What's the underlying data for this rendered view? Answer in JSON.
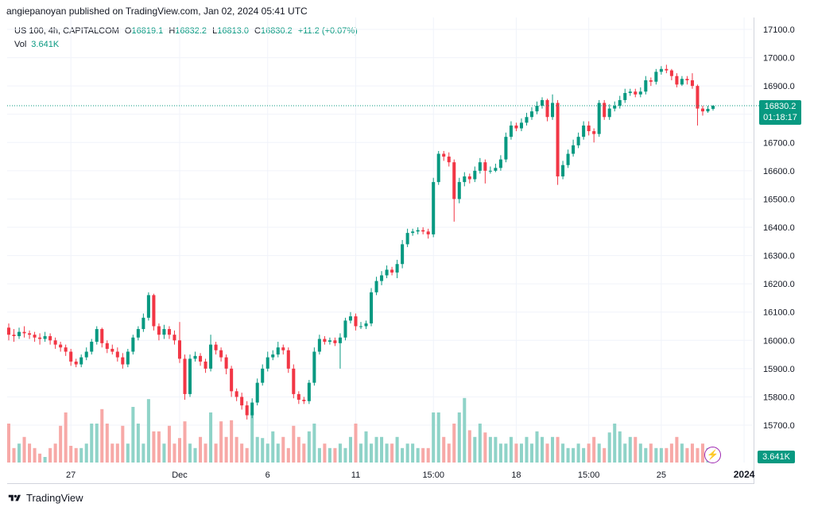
{
  "header": {
    "attribution": "angiepanoyan published on TradingView.com, Jan 02, 2024 05:41 UTC"
  },
  "legend": {
    "symbol": "US 100, 4h, CAPITALCOM",
    "open_label": "O",
    "open": "16819.1",
    "high_label": "H",
    "high": "16832.2",
    "low_label": "L",
    "low": "16813.0",
    "close_label": "C",
    "close": "16830.2",
    "change": "+11.2 (+0.07%)",
    "vol_label": "Vol",
    "vol_value": "3.641K"
  },
  "price_badge": {
    "price": "16830.2",
    "countdown": "01:18:17"
  },
  "vol_badge": "3.641K",
  "footer": {
    "brand": "TradingView"
  },
  "colors": {
    "up": "#089981",
    "down": "#f23645",
    "vol_up": "#8fd3c8",
    "vol_down": "#f7a9a7",
    "grid": "#f0f3fa",
    "text": "#131722"
  },
  "chart_data": {
    "type": "candlestick",
    "title": "",
    "y_axis_ticks": [
      "17100.0",
      "17000.0",
      "16900.0",
      "16800.0",
      "16700.0",
      "16600.0",
      "16500.0",
      "16400.0",
      "16300.0",
      "16200.0",
      "16100.0",
      "16000.0",
      "15900.0",
      "15800.0",
      "15700.0"
    ],
    "x_axis_ticks": [
      "27",
      "Dec",
      "6",
      "11",
      "15:00",
      "18",
      "15:00",
      "25",
      "2024"
    ],
    "ylim": [
      15600,
      17140
    ],
    "current_price": 16830.2,
    "candles": [
      [
        16045,
        16020,
        16060,
        16000
      ],
      [
        16020,
        16015,
        16040,
        15995
      ],
      [
        16015,
        16030,
        16045,
        16005
      ],
      [
        16030,
        16025,
        16050,
        16010
      ],
      [
        16025,
        16020,
        16035,
        16005
      ],
      [
        16020,
        16010,
        16030,
        15995
      ],
      [
        16010,
        16005,
        16025,
        15985
      ],
      [
        16005,
        16015,
        16030,
        15995
      ],
      [
        16015,
        16000,
        16025,
        15985
      ],
      [
        16000,
        15985,
        16010,
        15970
      ],
      [
        15985,
        15975,
        15995,
        15960
      ],
      [
        15975,
        15960,
        15985,
        15945
      ],
      [
        15960,
        15925,
        15970,
        15910
      ],
      [
        15925,
        15915,
        15935,
        15905
      ],
      [
        15915,
        15940,
        15950,
        15905
      ],
      [
        15940,
        15960,
        15975,
        15930
      ],
      [
        15960,
        15995,
        16005,
        15950
      ],
      [
        15995,
        16040,
        16050,
        15985
      ],
      [
        16040,
        15990,
        16045,
        15975
      ],
      [
        15990,
        15970,
        16000,
        15955
      ],
      [
        15970,
        15960,
        15985,
        15950
      ],
      [
        15960,
        15940,
        15975,
        15925
      ],
      [
        15940,
        15915,
        15955,
        15900
      ],
      [
        15915,
        15960,
        15970,
        15905
      ],
      [
        15960,
        16010,
        16020,
        15950
      ],
      [
        16010,
        16040,
        16050,
        16000
      ],
      [
        16040,
        16080,
        16095,
        16030
      ],
      [
        16080,
        16160,
        16170,
        16070
      ],
      [
        16160,
        16050,
        16165,
        16035
      ],
      [
        16050,
        16020,
        16060,
        16000
      ],
      [
        16020,
        16040,
        16055,
        16005
      ],
      [
        16040,
        16020,
        16050,
        16005
      ],
      [
        16020,
        16000,
        16035,
        15985
      ],
      [
        16000,
        15935,
        16065,
        15920
      ],
      [
        15935,
        15810,
        15950,
        15790
      ],
      [
        15810,
        15935,
        15950,
        15800
      ],
      [
        15935,
        15945,
        15960,
        15925
      ],
      [
        15945,
        15925,
        15955,
        15910
      ],
      [
        15925,
        15900,
        15935,
        15885
      ],
      [
        15900,
        15985,
        16020,
        15890
      ],
      [
        15985,
        15965,
        15995,
        15950
      ],
      [
        15965,
        15940,
        15975,
        15925
      ],
      [
        15940,
        15900,
        15950,
        15880
      ],
      [
        15900,
        15820,
        15910,
        15800
      ],
      [
        15820,
        15800,
        15830,
        15785
      ],
      [
        15800,
        15770,
        15815,
        15755
      ],
      [
        15770,
        15735,
        15785,
        15720
      ],
      [
        15735,
        15780,
        15795,
        15725
      ],
      [
        15780,
        15850,
        15865,
        15770
      ],
      [
        15850,
        15900,
        15915,
        15840
      ],
      [
        15900,
        15940,
        15960,
        15890
      ],
      [
        15940,
        15950,
        15965,
        15930
      ],
      [
        15950,
        15975,
        15995,
        15940
      ],
      [
        15975,
        15965,
        15985,
        15950
      ],
      [
        15965,
        15900,
        15975,
        15885
      ],
      [
        15900,
        15810,
        15915,
        15795
      ],
      [
        15810,
        15790,
        15820,
        15775
      ],
      [
        15790,
        15785,
        15800,
        15775
      ],
      [
        15785,
        15850,
        15860,
        15775
      ],
      [
        15850,
        15960,
        15975,
        15840
      ],
      [
        15960,
        16005,
        16020,
        15950
      ],
      [
        16005,
        15995,
        16015,
        15985
      ],
      [
        15995,
        16000,
        16010,
        15985
      ],
      [
        16000,
        15990,
        16010,
        15980
      ],
      [
        15990,
        16010,
        16025,
        15900
      ],
      [
        16010,
        16070,
        16080,
        16000
      ],
      [
        16070,
        16085,
        16100,
        16060
      ],
      [
        16085,
        16050,
        16095,
        16035
      ],
      [
        16050,
        16050,
        16065,
        16040
      ],
      [
        16050,
        16060,
        16070,
        16040
      ],
      [
        16060,
        16170,
        16185,
        16050
      ],
      [
        16170,
        16210,
        16225,
        16160
      ],
      [
        16210,
        16230,
        16245,
        16195
      ],
      [
        16230,
        16250,
        16265,
        16220
      ],
      [
        16250,
        16240,
        16260,
        16230
      ],
      [
        16240,
        16270,
        16285,
        16220
      ],
      [
        16270,
        16340,
        16355,
        16255
      ],
      [
        16340,
        16380,
        16395,
        16330
      ],
      [
        16380,
        16385,
        16395,
        16370
      ],
      [
        16385,
        16390,
        16400,
        16375
      ],
      [
        16390,
        16385,
        16400,
        16375
      ],
      [
        16385,
        16375,
        16395,
        16360
      ],
      [
        16375,
        16560,
        16575,
        16365
      ],
      [
        16560,
        16660,
        16670,
        16550
      ],
      [
        16660,
        16650,
        16670,
        16635
      ],
      [
        16650,
        16630,
        16665,
        16615
      ],
      [
        16630,
        16500,
        16640,
        16420
      ],
      [
        16500,
        16560,
        16575,
        16485
      ],
      [
        16560,
        16580,
        16595,
        16545
      ],
      [
        16580,
        16570,
        16590,
        16555
      ],
      [
        16570,
        16600,
        16615,
        16560
      ],
      [
        16600,
        16630,
        16645,
        16590
      ],
      [
        16630,
        16600,
        16640,
        16555
      ],
      [
        16600,
        16600,
        16615,
        16590
      ],
      [
        16600,
        16610,
        16625,
        16595
      ],
      [
        16610,
        16640,
        16655,
        16600
      ],
      [
        16640,
        16720,
        16735,
        16630
      ],
      [
        16720,
        16760,
        16775,
        16710
      ],
      [
        16760,
        16750,
        16770,
        16740
      ],
      [
        16750,
        16770,
        16785,
        16740
      ],
      [
        16770,
        16790,
        16805,
        16760
      ],
      [
        16790,
        16810,
        16825,
        16780
      ],
      [
        16810,
        16830,
        16845,
        16800
      ],
      [
        16830,
        16850,
        16860,
        16820
      ],
      [
        16850,
        16790,
        16855,
        16775
      ],
      [
        16790,
        16840,
        16870,
        16780
      ],
      [
        16840,
        16580,
        16850,
        16550
      ],
      [
        16580,
        16620,
        16635,
        16570
      ],
      [
        16620,
        16660,
        16675,
        16610
      ],
      [
        16660,
        16690,
        16710,
        16650
      ],
      [
        16690,
        16720,
        16735,
        16680
      ],
      [
        16720,
        16760,
        16775,
        16710
      ],
      [
        16760,
        16740,
        16775,
        16725
      ],
      [
        16740,
        16730,
        16750,
        16700
      ],
      [
        16730,
        16840,
        16850,
        16720
      ],
      [
        16840,
        16790,
        16850,
        16780
      ],
      [
        16790,
        16820,
        16835,
        16780
      ],
      [
        16820,
        16830,
        16845,
        16810
      ],
      [
        16830,
        16850,
        16865,
        16820
      ],
      [
        16850,
        16875,
        16890,
        16840
      ],
      [
        16875,
        16880,
        16890,
        16865
      ],
      [
        16880,
        16870,
        16890,
        16860
      ],
      [
        16870,
        16880,
        16895,
        16860
      ],
      [
        16880,
        16920,
        16935,
        16870
      ],
      [
        16920,
        16915,
        16930,
        16900
      ],
      [
        16915,
        16950,
        16960,
        16905
      ],
      [
        16950,
        16960,
        16970,
        16940
      ],
      [
        16960,
        16955,
        16975,
        16945
      ],
      [
        16955,
        16935,
        16960,
        16920
      ],
      [
        16935,
        16905,
        16945,
        16895
      ],
      [
        16905,
        16925,
        16935,
        16900
      ],
      [
        16925,
        16920,
        16935,
        16905
      ],
      [
        16920,
        16900,
        16945,
        16890
      ],
      [
        16900,
        16820,
        16905,
        16760
      ],
      [
        16820,
        16810,
        16830,
        16795
      ],
      [
        16810,
        16819,
        16830,
        16805
      ],
      [
        16819,
        16830,
        16832,
        16813
      ]
    ],
    "volume": [
      0.35,
      0.13,
      0.17,
      0.23,
      0.17,
      0.13,
      0.08,
      0.05,
      0.13,
      0.17,
      0.33,
      0.45,
      0.15,
      0.13,
      0.13,
      0.17,
      0.35,
      0.35,
      0.48,
      0.35,
      0.17,
      0.17,
      0.33,
      0.17,
      0.5,
      0.35,
      0.17,
      0.57,
      0.28,
      0.28,
      0.17,
      0.33,
      0.17,
      0.22,
      0.37,
      0.17,
      0.13,
      0.23,
      0.17,
      0.45,
      0.17,
      0.37,
      0.23,
      0.38,
      0.23,
      0.17,
      0.13,
      0.45,
      0.23,
      0.22,
      0.17,
      0.28,
      0.17,
      0.23,
      0.13,
      0.33,
      0.23,
      0.17,
      0.28,
      0.35,
      0.13,
      0.17,
      0.13,
      0.13,
      0.17,
      0.13,
      0.23,
      0.35,
      0.17,
      0.28,
      0.17,
      0.23,
      0.23,
      0.17,
      0.17,
      0.23,
      0.13,
      0.17,
      0.17,
      0.13,
      0.13,
      0.13,
      0.45,
      0.45,
      0.23,
      0.17,
      0.35,
      0.45,
      0.58,
      0.29,
      0.23,
      0.35,
      0.27,
      0.23,
      0.23,
      0.17,
      0.17,
      0.23,
      0.17,
      0.17,
      0.23,
      0.17,
      0.28,
      0.23,
      0.17,
      0.23,
      0.23,
      0.17,
      0.13,
      0.13,
      0.17,
      0.13,
      0.17,
      0.23,
      0.17,
      0.13,
      0.27,
      0.35,
      0.28,
      0.17,
      0.23,
      0.23,
      0.17,
      0.13,
      0.17,
      0.13,
      0.13,
      0.13,
      0.17,
      0.23,
      0.17,
      0.13,
      0.17,
      0.13,
      0.17,
      0.13,
      0.13,
      0.17,
      0.13,
      0.13,
      0.1,
      0.08
    ]
  }
}
